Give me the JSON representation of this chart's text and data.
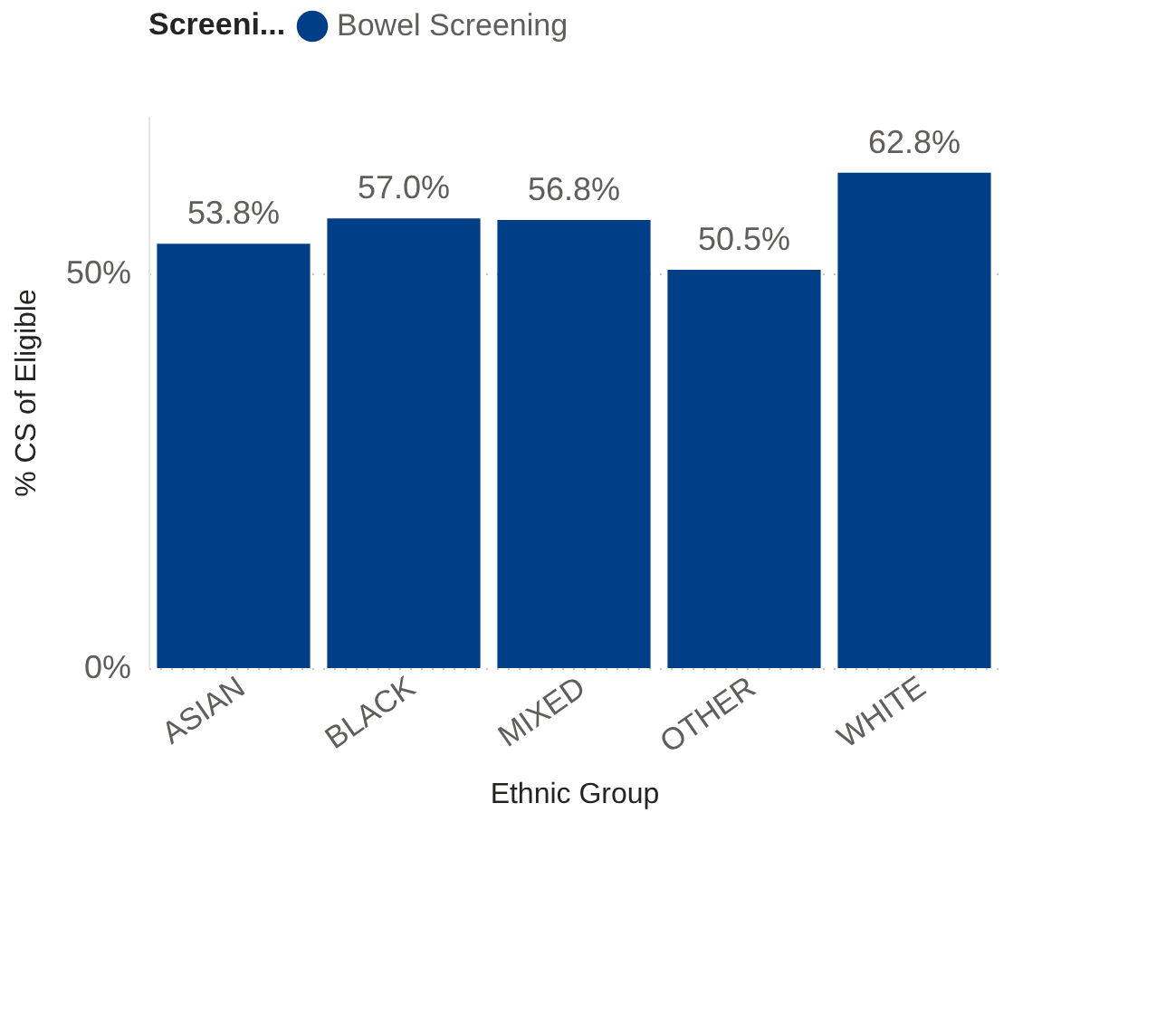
{
  "chart_data": {
    "type": "bar",
    "xlabel": "Ethnic Group",
    "ylabel": "% CS of Eligible",
    "legend_title": "Screeni...",
    "categories": [
      "ASIAN",
      "BLACK",
      "MIXED",
      "OTHER",
      "WHITE"
    ],
    "series": [
      {
        "name": "Bowel Screening",
        "color": "#003f87",
        "values": [
          53.8,
          57.0,
          56.8,
          50.5,
          62.8
        ],
        "value_labels": [
          "53.8%",
          "57.0%",
          "56.8%",
          "50.5%",
          "62.8%"
        ]
      }
    ],
    "ylim": [
      0,
      70
    ],
    "yticks": [
      {
        "value": 0,
        "label": "0%"
      },
      {
        "value": 50,
        "label": "50%"
      }
    ],
    "grid": "y",
    "legend": "top left"
  }
}
